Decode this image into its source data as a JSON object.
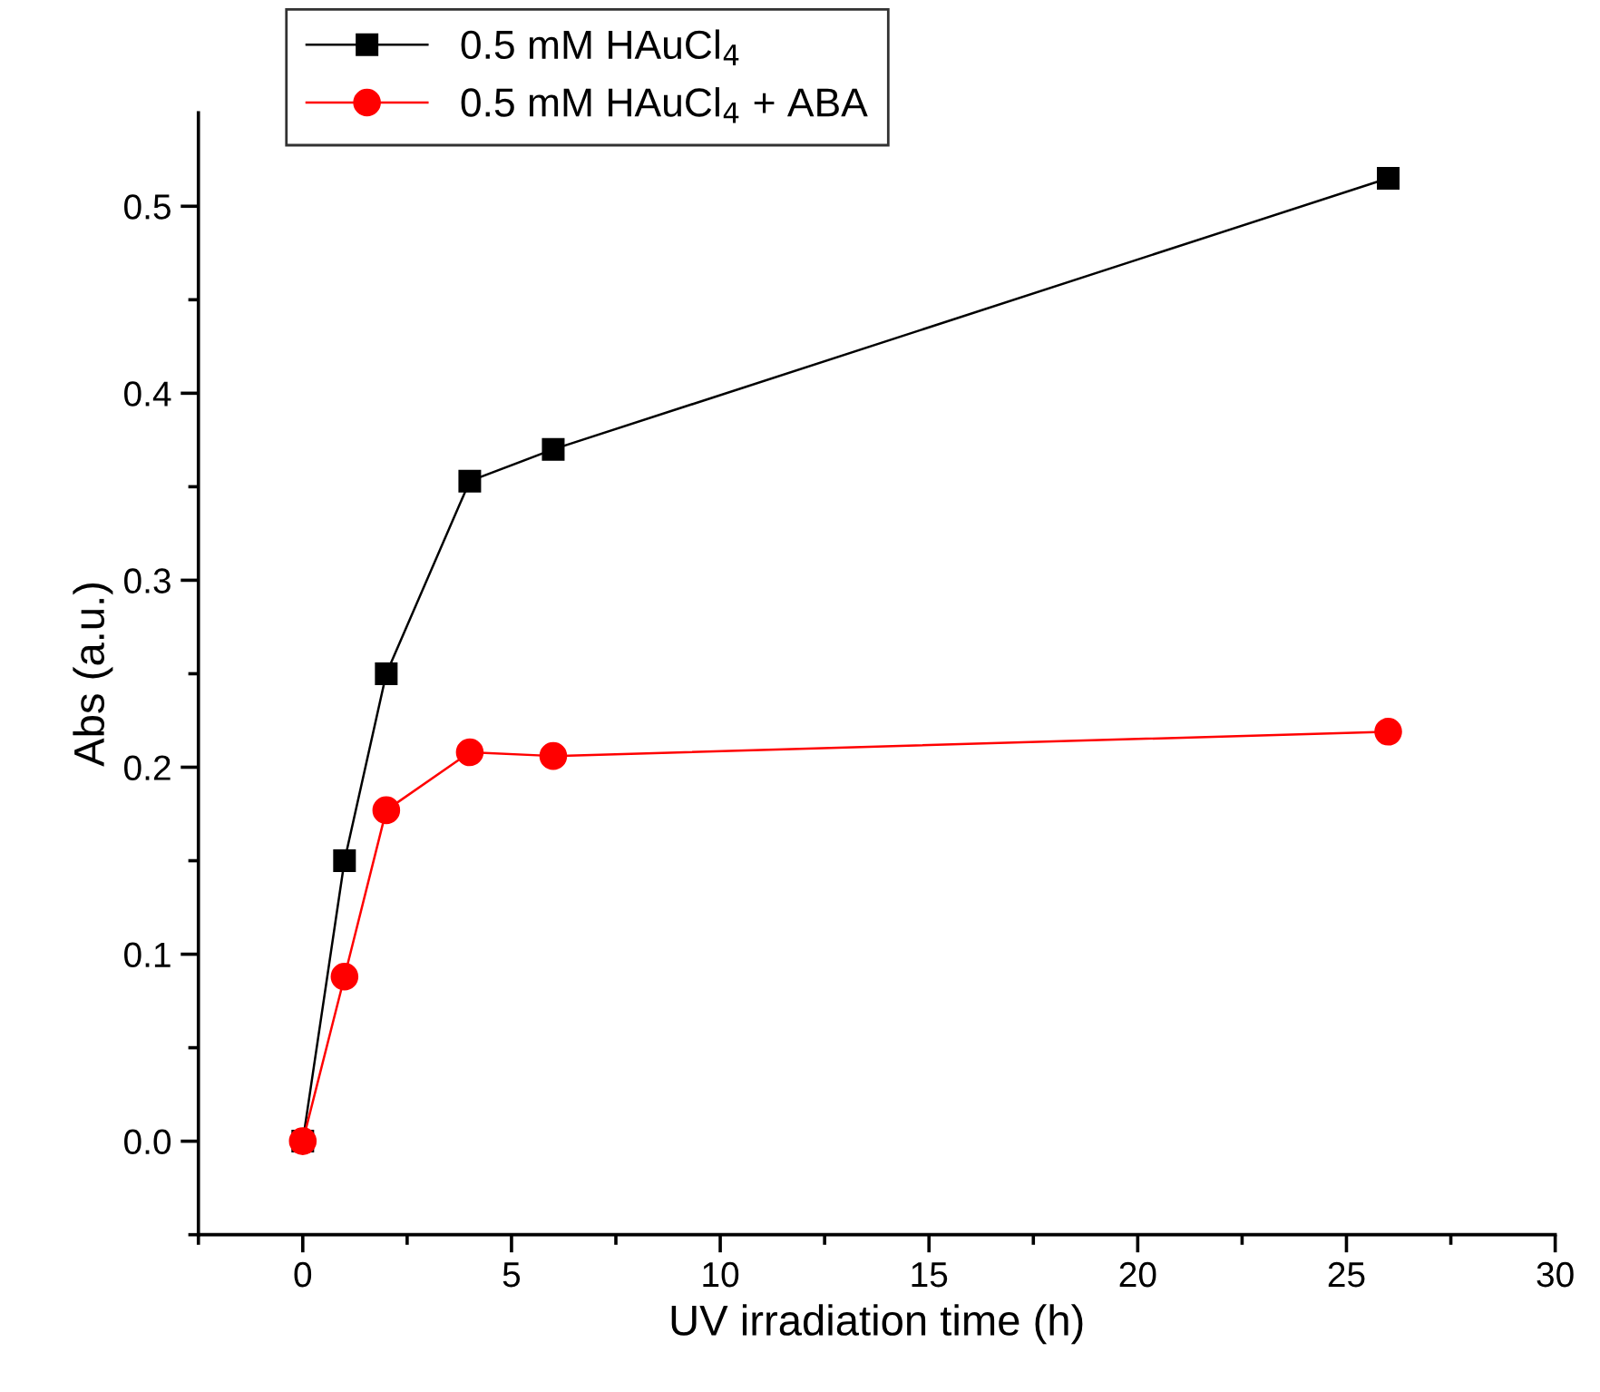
{
  "chart_data": {
    "type": "line",
    "xlabel": "UV irradiation time (h)",
    "ylabel": "Abs (a.u.)",
    "xlim": [
      -2.5,
      30
    ],
    "xticks": [
      0,
      5,
      10,
      15,
      20,
      25,
      30
    ],
    "ylim": [
      -0.05,
      0.55
    ],
    "yticks": [
      {
        "value": 0,
        "label": "0.0"
      },
      0.1,
      0.2,
      0.3,
      0.4,
      0.5
    ],
    "grid": false,
    "legend": "top left",
    "line_style": "solid",
    "series": [
      {
        "name": "0.5 mM HAuCl$_{4}$",
        "color": "#000000",
        "marker": "square",
        "x": [
          0,
          1,
          2,
          4,
          6,
          26
        ],
        "values": [
          0,
          0.15,
          0.25,
          0.353,
          0.37,
          0.515
        ]
      },
      {
        "name": "0.5 mM HAuCl$_{4}$ + ABA",
        "color": "#ff0000",
        "marker": "circle",
        "x": [
          0,
          1,
          2,
          4,
          6,
          26
        ],
        "values": [
          0,
          0.088,
          0.177,
          0.208,
          0.206,
          0.219
        ]
      }
    ]
  }
}
